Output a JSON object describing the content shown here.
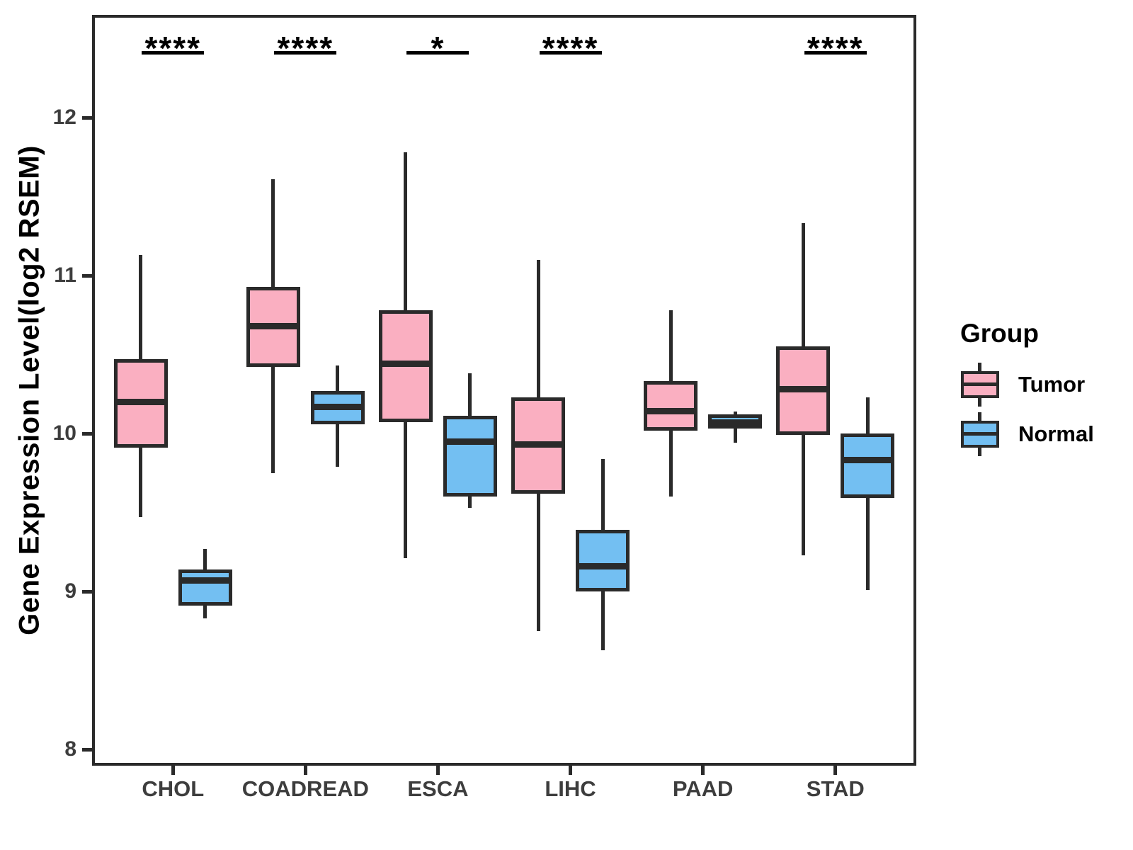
{
  "colors": {
    "tumor_fill": "#FAAFC1",
    "normal_fill": "#73BFF2",
    "line": "#2a2a2a",
    "axis_text": "#3d3d3d",
    "title_text": "#000000",
    "background": "#ffffff"
  },
  "legend": {
    "title": "Group",
    "items": [
      {
        "label": "Tumor",
        "color": "#FAAFC1"
      },
      {
        "label": "Normal",
        "color": "#73BFF2"
      }
    ]
  },
  "chart_data": {
    "type": "boxplot",
    "title": "",
    "xlabel": "",
    "ylabel": "Gene Expression Level(log2 RSEM)",
    "categories": [
      "CHOL",
      "COADREAD",
      "ESCA",
      "LIHC",
      "PAAD",
      "STAD"
    ],
    "y_ticks": [
      8,
      9,
      10,
      11,
      12
    ],
    "y_range": [
      7.906,
      12.641
    ],
    "grid": "off",
    "legend_position": "right",
    "series": [
      {
        "name": "Tumor",
        "color": "#FAAFC1",
        "boxes": [
          {
            "category": "CHOL",
            "min": 9.47,
            "q1": 9.91,
            "median": 10.2,
            "q3": 10.47,
            "max": 11.13
          },
          {
            "category": "COADREAD",
            "min": 9.75,
            "q1": 10.42,
            "median": 10.68,
            "q3": 10.93,
            "max": 11.61
          },
          {
            "category": "ESCA",
            "min": 9.21,
            "q1": 10.07,
            "median": 10.44,
            "q3": 10.78,
            "max": 11.78
          },
          {
            "category": "LIHC",
            "min": 8.75,
            "q1": 9.62,
            "median": 9.93,
            "q3": 10.23,
            "max": 11.1
          },
          {
            "category": "PAAD",
            "min": 9.6,
            "q1": 10.02,
            "median": 10.14,
            "q3": 10.33,
            "max": 10.78
          },
          {
            "category": "STAD",
            "min": 9.23,
            "q1": 9.99,
            "median": 10.28,
            "q3": 10.55,
            "max": 11.33
          }
        ]
      },
      {
        "name": "Normal",
        "color": "#73BFF2",
        "boxes": [
          {
            "category": "CHOL",
            "min": 8.83,
            "q1": 8.91,
            "median": 9.07,
            "q3": 9.14,
            "max": 9.27
          },
          {
            "category": "COADREAD",
            "min": 9.79,
            "q1": 10.06,
            "median": 10.17,
            "q3": 10.27,
            "max": 10.43
          },
          {
            "category": "ESCA",
            "min": 9.53,
            "q1": 9.6,
            "median": 9.95,
            "q3": 10.11,
            "max": 10.38
          },
          {
            "category": "LIHC",
            "min": 8.63,
            "q1": 9.0,
            "median": 9.16,
            "q3": 9.39,
            "max": 9.84
          },
          {
            "category": "PAAD",
            "min": 9.94,
            "q1": 10.03,
            "median": 10.07,
            "q3": 10.12,
            "max": 10.14
          },
          {
            "category": "STAD",
            "min": 9.01,
            "q1": 9.59,
            "median": 9.83,
            "q3": 10.0,
            "max": 10.23
          }
        ]
      }
    ],
    "significance": [
      {
        "category": "CHOL",
        "symbol": "****"
      },
      {
        "category": "COADREAD",
        "symbol": "****"
      },
      {
        "category": "ESCA",
        "symbol": "*"
      },
      {
        "category": "LIHC",
        "symbol": "****"
      },
      {
        "category": "STAD",
        "symbol": "****"
      }
    ]
  }
}
